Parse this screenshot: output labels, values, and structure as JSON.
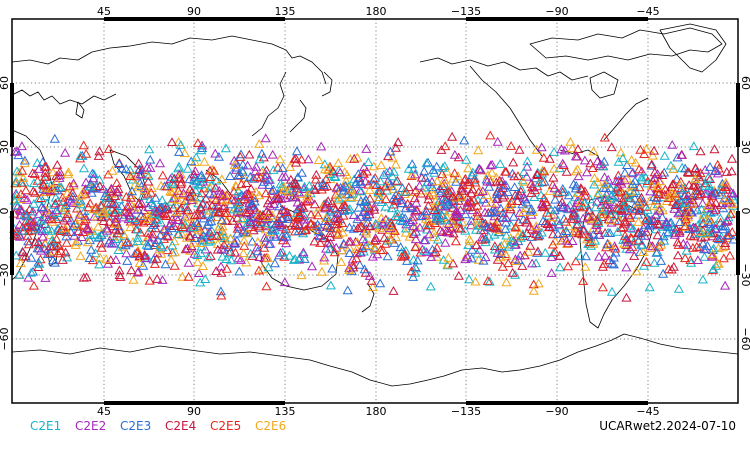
{
  "map": {
    "top_lon_labels": [
      "45",
      "90",
      "135",
      "180",
      "−135",
      "−90",
      "−45"
    ],
    "bottom_lon_labels": [
      "45",
      "90",
      "135",
      "180",
      "−135",
      "−90",
      "−45"
    ],
    "lat_labels": [
      "60",
      "30",
      "0",
      "−30",
      "−60"
    ],
    "grid": true,
    "projection": "cylindrical equidistant, centered on 180",
    "marker_shape": "open triangle"
  },
  "legend": {
    "items": [
      {
        "label": "C2E1",
        "color": "#16b4c8"
      },
      {
        "label": "C2E2",
        "color": "#a626bc"
      },
      {
        "label": "C2E3",
        "color": "#2a6ed8"
      },
      {
        "label": "C2E4",
        "color": "#c8173c"
      },
      {
        "label": "C2E5",
        "color": "#e6261e"
      },
      {
        "label": "C2E6",
        "color": "#f2a81e"
      }
    ]
  },
  "footer": {
    "product": "UCARwet2.2024-07-10"
  }
}
